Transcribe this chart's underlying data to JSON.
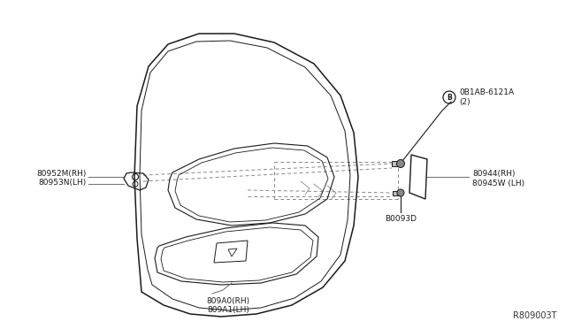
{
  "bg_color": "#ffffff",
  "line_color": "#1a1a1a",
  "label_color": "#1a1a1a",
  "dashed_color": "#888888",
  "leader_color": "#777777",
  "ref_number": "R809003T",
  "labels": {
    "left_part": [
      "80952M(RH)",
      "80953N(LH)"
    ],
    "right_part": [
      "80944(RH)",
      "80945W (LH)"
    ],
    "bottom_part": [
      "809A0(RH)",
      "809A1(LH)"
    ],
    "bolt1_line1": "0B1AB-6121A",
    "bolt1_line2": "(2)",
    "bolt2": "B0093D"
  },
  "font_size": 6.5,
  "ref_font_size": 7
}
